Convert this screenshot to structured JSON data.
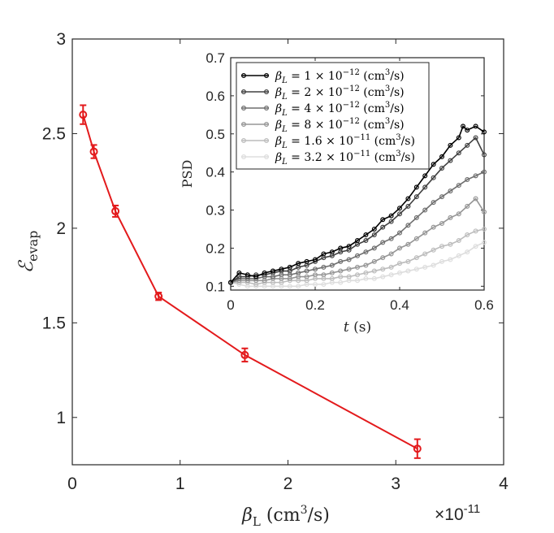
{
  "chart_data": [
    {
      "type": "line",
      "xlabel": "β_L (cm³/s)",
      "ylabel": "ℰ_evap",
      "x_exponent_label": "×10",
      "x_exponent_power": "-11",
      "x_scale": 1e-11,
      "xlim": [
        0,
        4
      ],
      "ylim": [
        0.75,
        3
      ],
      "xticks": [
        0,
        1,
        2,
        3,
        4
      ],
      "yticks": [
        1,
        1.5,
        2,
        2.5,
        3
      ],
      "xtick_labels": [
        "0",
        "1",
        "2",
        "3",
        "4"
      ],
      "ytick_labels": [
        "1",
        "1.5",
        "2",
        "2.5",
        "3"
      ],
      "series": [
        {
          "name": "ℰ_evap",
          "color": "#e31a1c",
          "x": [
            0.1,
            0.2,
            0.4,
            0.8,
            1.6,
            3.2
          ],
          "y": [
            2.6,
            2.405,
            2.09,
            1.64,
            1.33,
            0.835
          ],
          "err": [
            0.05,
            0.035,
            0.03,
            0.02,
            0.035,
            0.05
          ]
        }
      ]
    },
    {
      "type": "line",
      "xlabel": "t (s)",
      "ylabel": "PSD",
      "xlim": [
        0,
        0.6
      ],
      "ylim": [
        0.09,
        0.7
      ],
      "xticks": [
        0,
        0.2,
        0.4,
        0.6
      ],
      "yticks": [
        0.1,
        0.2,
        0.3,
        0.4,
        0.5,
        0.6,
        0.7
      ],
      "xtick_labels": [
        "0",
        "0.2",
        "0.4",
        "0.6"
      ],
      "ytick_labels": [
        "0.1",
        "0.2",
        "0.3",
        "0.4",
        "0.5",
        "0.6",
        "0.7"
      ],
      "legend_position": "top-left",
      "series": [
        {
          "name": "β_L = 1 × 10⁻¹² (cm³/s)",
          "legend": {
            "prefix": "β",
            "sub": "L",
            "mid": " = 1 × 10",
            "sup": "−12",
            "unit_a": " (cm",
            "unit_sup": "3",
            "unit_b": "/s)"
          },
          "color": "#000000",
          "y_start": 0.11,
          "y_end": 0.505,
          "y_peak": 0.52,
          "noise": 0.008,
          "points": [
            [
              0.0,
              0.11
            ],
            [
              0.02,
              0.135
            ],
            [
              0.04,
              0.13
            ],
            [
              0.06,
              0.125
            ],
            [
              0.08,
              0.135
            ],
            [
              0.1,
              0.14
            ],
            [
              0.12,
              0.145
            ],
            [
              0.14,
              0.15
            ],
            [
              0.16,
              0.16
            ],
            [
              0.18,
              0.165
            ],
            [
              0.2,
              0.17
            ],
            [
              0.22,
              0.185
            ],
            [
              0.24,
              0.19
            ],
            [
              0.26,
              0.2
            ],
            [
              0.28,
              0.205
            ],
            [
              0.3,
              0.22
            ],
            [
              0.32,
              0.235
            ],
            [
              0.34,
              0.25
            ],
            [
              0.36,
              0.275
            ],
            [
              0.38,
              0.285
            ],
            [
              0.4,
              0.305
            ],
            [
              0.42,
              0.33
            ],
            [
              0.44,
              0.36
            ],
            [
              0.46,
              0.39
            ],
            [
              0.48,
              0.42
            ],
            [
              0.5,
              0.44
            ],
            [
              0.52,
              0.47
            ],
            [
              0.54,
              0.49
            ],
            [
              0.55,
              0.52
            ],
            [
              0.56,
              0.51
            ],
            [
              0.58,
              0.52
            ],
            [
              0.6,
              0.505
            ]
          ]
        },
        {
          "name": "β_L = 2 × 10⁻¹² (cm³/s)",
          "legend": {
            "prefix": "β",
            "sub": "L",
            "mid": " = 2 × 10",
            "sup": "−12",
            "unit_a": " (cm",
            "unit_sup": "3",
            "unit_b": "/s)"
          },
          "color": "#404040",
          "points": [
            [
              0.0,
              0.11
            ],
            [
              0.02,
              0.125
            ],
            [
              0.04,
              0.125
            ],
            [
              0.06,
              0.13
            ],
            [
              0.08,
              0.13
            ],
            [
              0.1,
              0.135
            ],
            [
              0.12,
              0.14
            ],
            [
              0.14,
              0.14
            ],
            [
              0.16,
              0.15
            ],
            [
              0.18,
              0.155
            ],
            [
              0.2,
              0.165
            ],
            [
              0.22,
              0.175
            ],
            [
              0.24,
              0.18
            ],
            [
              0.26,
              0.19
            ],
            [
              0.28,
              0.195
            ],
            [
              0.3,
              0.21
            ],
            [
              0.32,
              0.22
            ],
            [
              0.34,
              0.235
            ],
            [
              0.36,
              0.255
            ],
            [
              0.38,
              0.27
            ],
            [
              0.4,
              0.29
            ],
            [
              0.42,
              0.31
            ],
            [
              0.44,
              0.335
            ],
            [
              0.46,
              0.36
            ],
            [
              0.48,
              0.385
            ],
            [
              0.5,
              0.41
            ],
            [
              0.52,
              0.43
            ],
            [
              0.54,
              0.45
            ],
            [
              0.56,
              0.47
            ],
            [
              0.58,
              0.49
            ],
            [
              0.6,
              0.445
            ]
          ]
        },
        {
          "name": "β_L = 4 × 10⁻¹² (cm³/s)",
          "legend": {
            "prefix": "β",
            "sub": "L",
            "mid": " = 4 × 10",
            "sup": "−12",
            "unit_a": " (cm",
            "unit_sup": "3",
            "unit_b": "/s)"
          },
          "color": "#6e6e6e",
          "points": [
            [
              0.0,
              0.11
            ],
            [
              0.02,
              0.12
            ],
            [
              0.04,
              0.12
            ],
            [
              0.06,
              0.12
            ],
            [
              0.08,
              0.125
            ],
            [
              0.1,
              0.125
            ],
            [
              0.12,
              0.13
            ],
            [
              0.14,
              0.13
            ],
            [
              0.16,
              0.135
            ],
            [
              0.18,
              0.14
            ],
            [
              0.2,
              0.145
            ],
            [
              0.22,
              0.15
            ],
            [
              0.24,
              0.155
            ],
            [
              0.26,
              0.165
            ],
            [
              0.28,
              0.17
            ],
            [
              0.3,
              0.18
            ],
            [
              0.32,
              0.19
            ],
            [
              0.34,
              0.2
            ],
            [
              0.36,
              0.215
            ],
            [
              0.38,
              0.225
            ],
            [
              0.4,
              0.24
            ],
            [
              0.42,
              0.26
            ],
            [
              0.44,
              0.28
            ],
            [
              0.46,
              0.3
            ],
            [
              0.48,
              0.32
            ],
            [
              0.5,
              0.335
            ],
            [
              0.52,
              0.35
            ],
            [
              0.54,
              0.365
            ],
            [
              0.56,
              0.38
            ],
            [
              0.58,
              0.39
            ],
            [
              0.6,
              0.4
            ]
          ]
        },
        {
          "name": "β_L = 8 × 10⁻¹² (cm³/s)",
          "legend": {
            "prefix": "β",
            "sub": "L",
            "mid": " = 8 × 10",
            "sup": "−12",
            "unit_a": " (cm",
            "unit_sup": "3",
            "unit_b": "/s)"
          },
          "color": "#959595",
          "points": [
            [
              0.0,
              0.11
            ],
            [
              0.02,
              0.115
            ],
            [
              0.04,
              0.115
            ],
            [
              0.06,
              0.115
            ],
            [
              0.08,
              0.115
            ],
            [
              0.1,
              0.12
            ],
            [
              0.12,
              0.12
            ],
            [
              0.14,
              0.12
            ],
            [
              0.16,
              0.125
            ],
            [
              0.18,
              0.125
            ],
            [
              0.2,
              0.13
            ],
            [
              0.22,
              0.13
            ],
            [
              0.24,
              0.135
            ],
            [
              0.26,
              0.14
            ],
            [
              0.28,
              0.145
            ],
            [
              0.3,
              0.15
            ],
            [
              0.32,
              0.155
            ],
            [
              0.34,
              0.165
            ],
            [
              0.36,
              0.175
            ],
            [
              0.38,
              0.185
            ],
            [
              0.4,
              0.2
            ],
            [
              0.42,
              0.21
            ],
            [
              0.44,
              0.225
            ],
            [
              0.46,
              0.24
            ],
            [
              0.48,
              0.255
            ],
            [
              0.5,
              0.265
            ],
            [
              0.52,
              0.28
            ],
            [
              0.54,
              0.29
            ],
            [
              0.56,
              0.31
            ],
            [
              0.58,
              0.33
            ],
            [
              0.6,
              0.295
            ]
          ]
        },
        {
          "name": "β_L = 1.6 × 10⁻¹¹ (cm³/s)",
          "legend": {
            "prefix": "β",
            "sub": "L",
            "mid": " = 1.6 × 10",
            "sup": "−11",
            "unit_a": " (cm",
            "unit_sup": "3",
            "unit_b": "/s)"
          },
          "color": "#bcbcbc",
          "points": [
            [
              0.0,
              0.11
            ],
            [
              0.02,
              0.11
            ],
            [
              0.04,
              0.11
            ],
            [
              0.06,
              0.105
            ],
            [
              0.08,
              0.11
            ],
            [
              0.1,
              0.11
            ],
            [
              0.12,
              0.11
            ],
            [
              0.14,
              0.115
            ],
            [
              0.16,
              0.115
            ],
            [
              0.18,
              0.115
            ],
            [
              0.2,
              0.12
            ],
            [
              0.22,
              0.12
            ],
            [
              0.24,
              0.12
            ],
            [
              0.26,
              0.125
            ],
            [
              0.28,
              0.125
            ],
            [
              0.3,
              0.13
            ],
            [
              0.32,
              0.135
            ],
            [
              0.34,
              0.14
            ],
            [
              0.36,
              0.145
            ],
            [
              0.38,
              0.15
            ],
            [
              0.4,
              0.16
            ],
            [
              0.42,
              0.165
            ],
            [
              0.44,
              0.175
            ],
            [
              0.46,
              0.185
            ],
            [
              0.48,
              0.195
            ],
            [
              0.5,
              0.205
            ],
            [
              0.52,
              0.21
            ],
            [
              0.54,
              0.22
            ],
            [
              0.56,
              0.235
            ],
            [
              0.58,
              0.245
            ],
            [
              0.6,
              0.25
            ]
          ]
        },
        {
          "name": "β_L = 3.2 × 10⁻¹¹ (cm³/s)",
          "legend": {
            "prefix": "β",
            "sub": "L",
            "mid": " = 3.2 × 10",
            "sup": "−11",
            "unit_a": " (cm",
            "unit_sup": "3",
            "unit_b": "/s)"
          },
          "color": "#dddddd",
          "points": [
            [
              0.0,
              0.11
            ],
            [
              0.02,
              0.105
            ],
            [
              0.04,
              0.1
            ],
            [
              0.06,
              0.1
            ],
            [
              0.08,
              0.1
            ],
            [
              0.1,
              0.1
            ],
            [
              0.12,
              0.1
            ],
            [
              0.14,
              0.1
            ],
            [
              0.16,
              0.1
            ],
            [
              0.18,
              0.105
            ],
            [
              0.2,
              0.105
            ],
            [
              0.22,
              0.105
            ],
            [
              0.24,
              0.11
            ],
            [
              0.26,
              0.11
            ],
            [
              0.28,
              0.115
            ],
            [
              0.3,
              0.115
            ],
            [
              0.32,
              0.12
            ],
            [
              0.34,
              0.12
            ],
            [
              0.36,
              0.125
            ],
            [
              0.38,
              0.13
            ],
            [
              0.4,
              0.135
            ],
            [
              0.42,
              0.14
            ],
            [
              0.44,
              0.145
            ],
            [
              0.46,
              0.15
            ],
            [
              0.48,
              0.155
            ],
            [
              0.5,
              0.165
            ],
            [
              0.52,
              0.17
            ],
            [
              0.54,
              0.18
            ],
            [
              0.56,
              0.19
            ],
            [
              0.58,
              0.205
            ],
            [
              0.6,
              0.215
            ]
          ]
        }
      ]
    }
  ]
}
